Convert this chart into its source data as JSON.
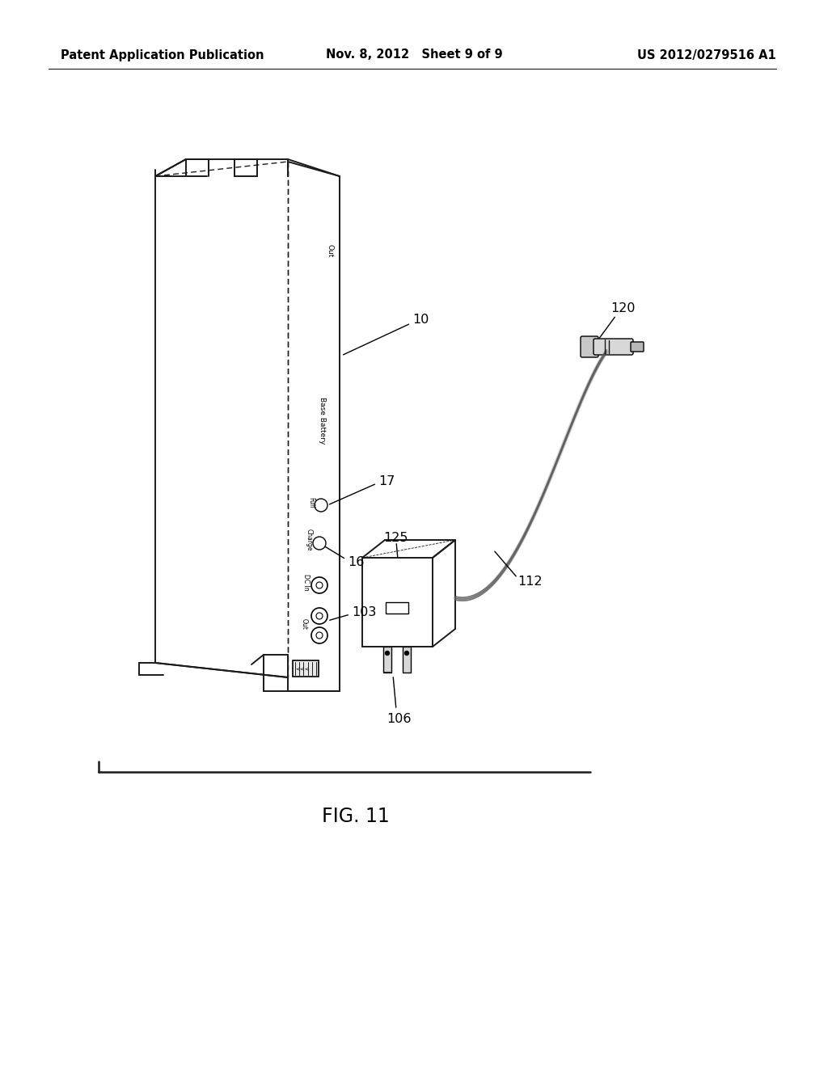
{
  "background_color": "#ffffff",
  "header_left": "Patent Application Publication",
  "header_center": "Nov. 8, 2012   Sheet 9 of 9",
  "header_right": "US 2012/0279516 A1",
  "figure_label": "FIG. 11",
  "line_color": "#1a1a1a",
  "text_color": "#000000",
  "header_fontsize": 10.5,
  "label_fontsize": 11.5
}
